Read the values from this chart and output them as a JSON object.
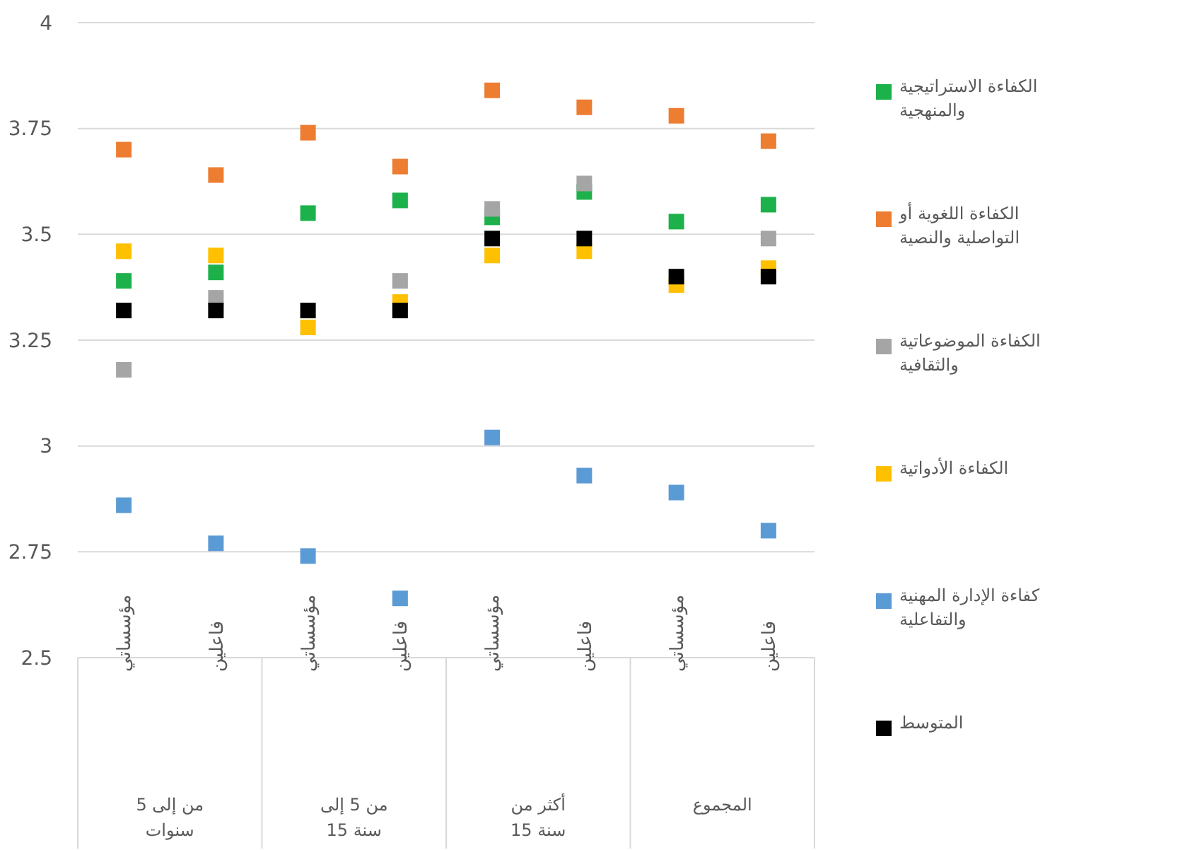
{
  "chart_data": {
    "type": "scatter",
    "categories": [
      "مؤسساتي",
      "فاعلين",
      "مؤسساتي",
      "فاعلين",
      "مؤسساتي",
      "فاعلين",
      "مؤسساتي",
      "فاعلين"
    ],
    "annotations": [
      "من إلى 5 سنوات",
      "من 5 إلى 15 سنة",
      "أكثر من 15 سنة",
      "المجموع"
    ],
    "ylim": [
      2.5,
      4
    ],
    "yticks": [
      {
        "value": 2.5,
        "label": "2.5"
      },
      {
        "value": 2.75,
        "label": "2.75"
      },
      {
        "value": 3,
        "label": "3"
      },
      {
        "value": 3.25,
        "label": "3.25"
      },
      {
        "value": 3.5,
        "label": "3.5"
      },
      {
        "value": 3.75,
        "label": "3.75"
      },
      {
        "value": 4,
        "label": "4"
      }
    ],
    "grid": "y",
    "legend": "right",
    "marker": "square",
    "series": [
      {
        "name": "الكفاءة الاستراتيجية والمنهجية",
        "color": "#1db14b",
        "values": [
          3.39,
          3.41,
          3.55,
          3.58,
          3.54,
          3.6,
          3.53,
          3.57
        ]
      },
      {
        "name": "الكفاءة اللغوية أو التواصلية والنصية",
        "color": "#ed7d31",
        "values": [
          3.7,
          3.64,
          3.74,
          3.66,
          3.84,
          3.8,
          3.78,
          3.72
        ]
      },
      {
        "name": "الكفاءة الموضوعاتية والثقافية",
        "color": "#a5a5a5",
        "values": [
          3.18,
          3.35,
          null,
          3.39,
          3.56,
          3.62,
          null,
          3.49
        ]
      },
      {
        "name": "الكفاءة الأدواتية",
        "color": "#ffc000",
        "values": [
          3.46,
          3.45,
          3.28,
          3.34,
          3.45,
          3.46,
          3.38,
          3.42
        ]
      },
      {
        "name": "كفاءة الإدارة المهنية والتفاعلية",
        "color": "#5b9bd5",
        "values": [
          2.86,
          2.77,
          2.74,
          2.64,
          3.02,
          2.93,
          2.89,
          2.8
        ]
      },
      {
        "name": "المتوسط",
        "color": "#000000",
        "values": [
          3.32,
          3.32,
          3.32,
          3.32,
          3.49,
          3.49,
          3.4,
          3.4
        ]
      }
    ]
  }
}
